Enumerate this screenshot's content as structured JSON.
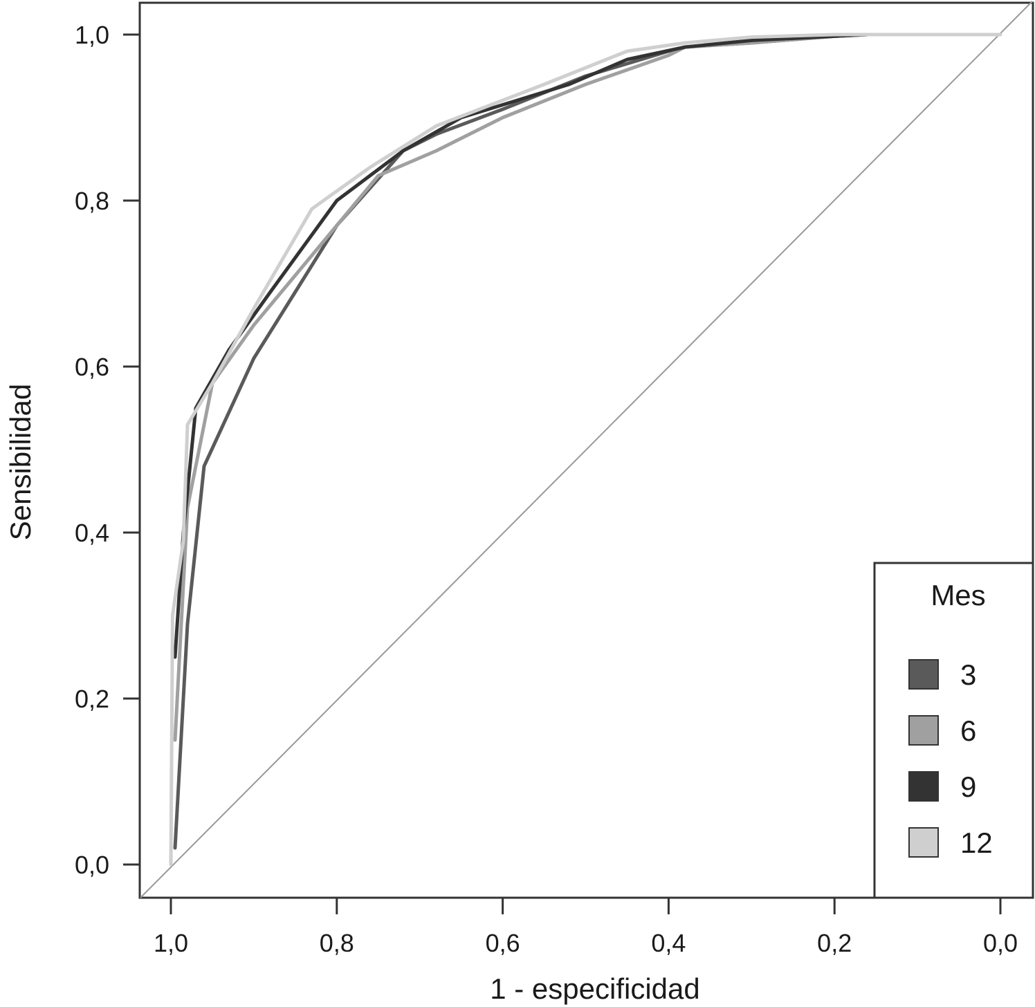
{
  "chart_data": {
    "type": "line",
    "title": "",
    "xlabel": "1 - especificidad",
    "ylabel": "Sensibilidad",
    "x_reversed": true,
    "xlim": [
      1.0,
      0.0
    ],
    "ylim": [
      0.0,
      1.0
    ],
    "x_ticks": [
      "1,0",
      "0,8",
      "0,6",
      "0,4",
      "0,2",
      "0,0"
    ],
    "x_tick_values": [
      1.0,
      0.8,
      0.6,
      0.4,
      0.2,
      0.0
    ],
    "y_ticks": [
      "0,0",
      "0,2",
      "0,4",
      "0,6",
      "0,8",
      "1,0"
    ],
    "y_tick_values": [
      0.0,
      0.2,
      0.4,
      0.6,
      0.8,
      1.0
    ],
    "grid": false,
    "reference_line": {
      "from": [
        1.0,
        0.0
      ],
      "to": [
        0.0,
        1.0
      ],
      "color": "#999999"
    },
    "legend": {
      "title": "Mes",
      "position": "bottom-right"
    },
    "series": [
      {
        "name": "3",
        "color": "#5a5a5a",
        "x": [
          0.995,
          0.98,
          0.96,
          0.9,
          0.85,
          0.8,
          0.72,
          0.68,
          0.6,
          0.5,
          0.4,
          0.38,
          0.3,
          0.2,
          0.16
        ],
        "y": [
          0.02,
          0.29,
          0.48,
          0.61,
          0.69,
          0.77,
          0.86,
          0.88,
          0.91,
          0.95,
          0.98,
          0.985,
          0.99,
          0.998,
          1.0
        ]
      },
      {
        "name": "6",
        "color": "#a0a0a0",
        "x": [
          0.995,
          0.98,
          0.95,
          0.9,
          0.85,
          0.8,
          0.75,
          0.68,
          0.6,
          0.5,
          0.4,
          0.38,
          0.3,
          0.2,
          0.16
        ],
        "y": [
          0.15,
          0.43,
          0.58,
          0.65,
          0.71,
          0.77,
          0.83,
          0.86,
          0.9,
          0.94,
          0.975,
          0.985,
          0.99,
          0.998,
          1.0
        ]
      },
      {
        "name": "9",
        "color": "#333333",
        "x": [
          0.995,
          0.985,
          0.97,
          0.93,
          0.88,
          0.8,
          0.72,
          0.65,
          0.52,
          0.45,
          0.38,
          0.3,
          0.2,
          0.16
        ],
        "y": [
          0.25,
          0.4,
          0.55,
          0.62,
          0.69,
          0.8,
          0.86,
          0.9,
          0.94,
          0.97,
          0.985,
          0.993,
          0.998,
          1.0
        ]
      },
      {
        "name": "12",
        "color": "#cfcfcf",
        "x": [
          1.0,
          0.998,
          0.985,
          0.98,
          0.95,
          0.9,
          0.83,
          0.76,
          0.68,
          0.55,
          0.45,
          0.38,
          0.3,
          0.2,
          0.0
        ],
        "y": [
          0.0,
          0.3,
          0.39,
          0.53,
          0.58,
          0.67,
          0.79,
          0.84,
          0.89,
          0.94,
          0.98,
          0.99,
          0.997,
          1.0,
          1.0
        ]
      }
    ]
  }
}
